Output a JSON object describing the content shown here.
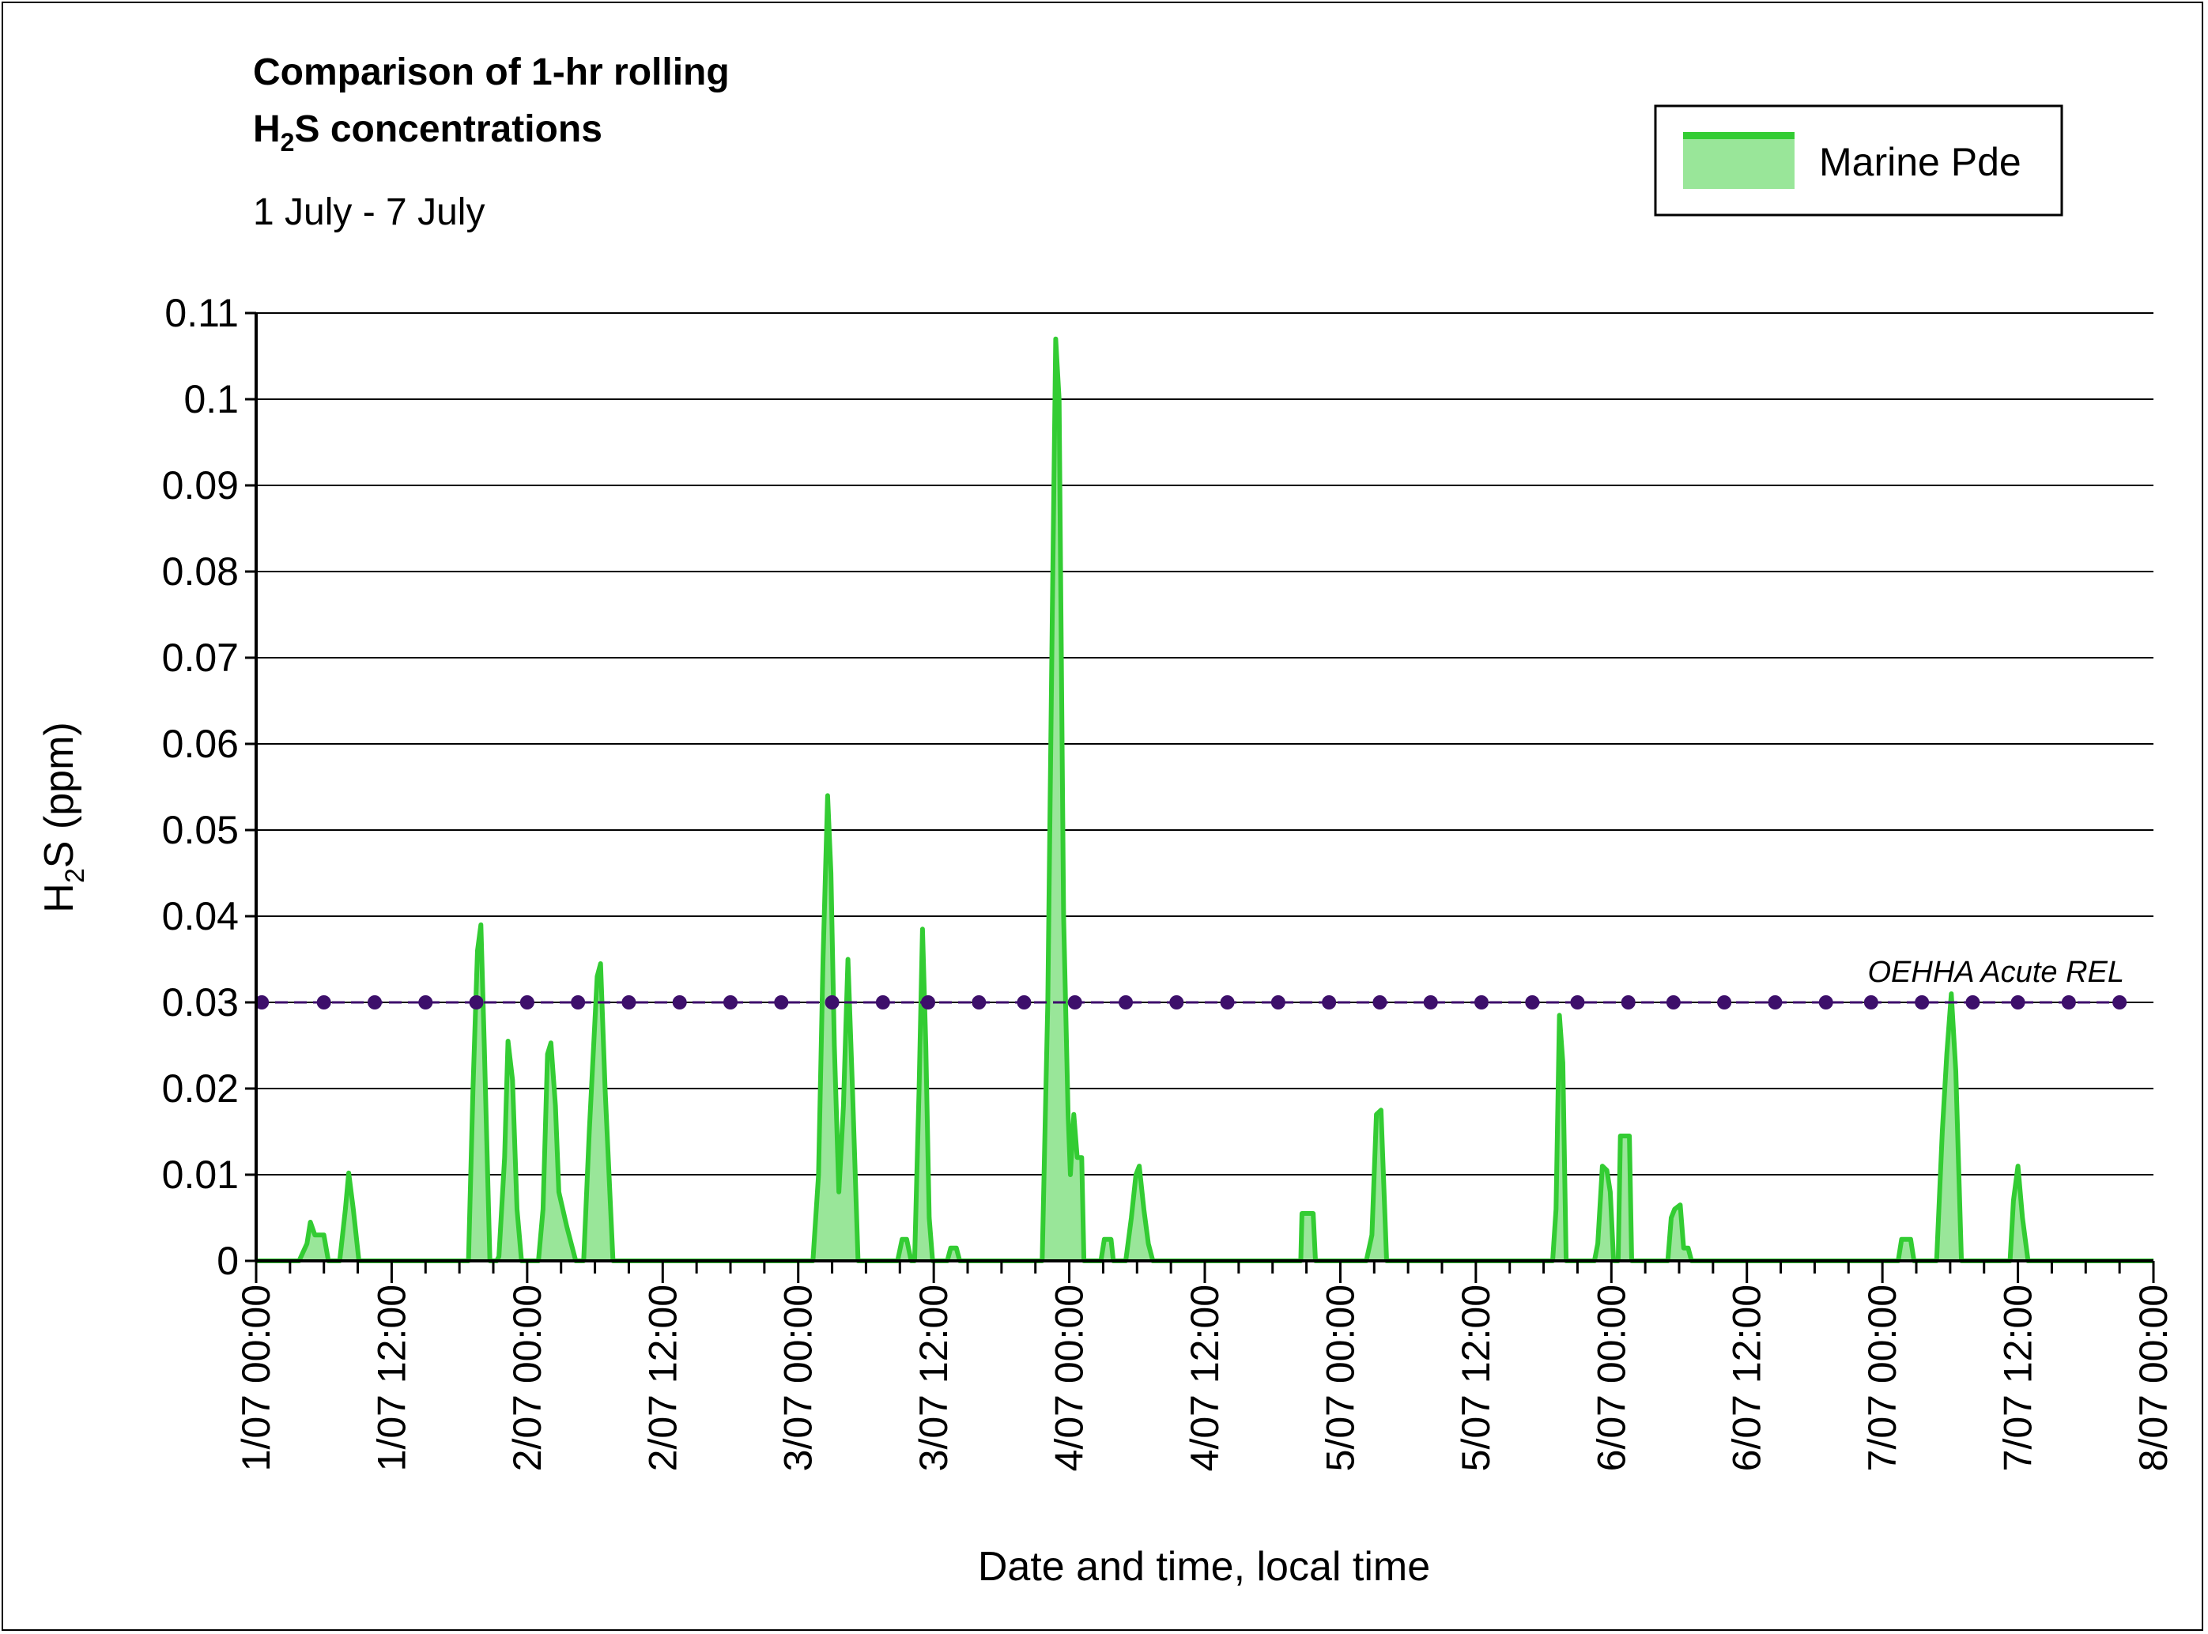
{
  "chart_data": {
    "type": "area",
    "title_line1": "Comparison of 1-hr rolling",
    "title_line2_prefix": "H",
    "title_line2_sub": "2",
    "title_line2_suffix": "S concentrations",
    "subtitle": "1 July - 7 July",
    "ylabel_prefix": "H",
    "ylabel_sub": "2",
    "ylabel_suffix": "S (ppm)",
    "xlabel": "Date and time, local time",
    "ylim": [
      0,
      0.11
    ],
    "xlim_hours": [
      0,
      168
    ],
    "y_ticks": [
      "0",
      "0.01",
      "0.02",
      "0.03",
      "0.04",
      "0.05",
      "0.06",
      "0.07",
      "0.08",
      "0.09",
      "0.1",
      "0.11"
    ],
    "x_ticks": [
      "1/07 00:00",
      "1/07 12:00",
      "2/07 00:00",
      "2/07 12:00",
      "3/07 00:00",
      "3/07 12:00",
      "4/07 00:00",
      "4/07 12:00",
      "5/07 00:00",
      "5/07 12:00",
      "6/07 00:00",
      "6/07 12:00",
      "7/07 00:00",
      "7/07 12:00",
      "8/07 00:00"
    ],
    "grid": true,
    "legend_position": "top-right",
    "series": [
      {
        "name": "Marine Pde",
        "line_color": "#33cc33",
        "fill_color": "#99e699",
        "points": [
          [
            0,
            0
          ],
          [
            3.8,
            0
          ],
          [
            4.5,
            0.002
          ],
          [
            4.8,
            0.0045
          ],
          [
            5.2,
            0.003
          ],
          [
            5.6,
            0.003
          ],
          [
            6,
            0.003
          ],
          [
            6.4,
            0
          ],
          [
            7.4,
            0
          ],
          [
            7.9,
            0.006
          ],
          [
            8.2,
            0.0102
          ],
          [
            8.6,
            0.006
          ],
          [
            9.1,
            0
          ],
          [
            18.8,
            0
          ],
          [
            19.2,
            0.02
          ],
          [
            19.6,
            0.036
          ],
          [
            19.9,
            0.039
          ],
          [
            20.2,
            0.025
          ],
          [
            20.7,
            0
          ],
          [
            21.3,
            0
          ],
          [
            21.5,
            0.0005
          ],
          [
            22,
            0.012
          ],
          [
            22.3,
            0.0255
          ],
          [
            22.7,
            0.021
          ],
          [
            23.1,
            0.006
          ],
          [
            23.5,
            0
          ],
          [
            25,
            0
          ],
          [
            25.4,
            0.006
          ],
          [
            25.8,
            0.024
          ],
          [
            26.1,
            0.0253
          ],
          [
            26.5,
            0.018
          ],
          [
            26.8,
            0.008
          ],
          [
            27.5,
            0.004
          ],
          [
            28.3,
            0
          ],
          [
            29,
            0
          ],
          [
            29.5,
            0.015
          ],
          [
            30.2,
            0.033
          ],
          [
            30.5,
            0.0345
          ],
          [
            30.9,
            0.02
          ],
          [
            31.6,
            0
          ],
          [
            49.3,
            0
          ],
          [
            49.8,
            0.01
          ],
          [
            50.2,
            0.035
          ],
          [
            50.6,
            0.054
          ],
          [
            50.9,
            0.045
          ],
          [
            51.2,
            0.025
          ],
          [
            51.6,
            0.008
          ],
          [
            52,
            0.018
          ],
          [
            52.4,
            0.035
          ],
          [
            52.8,
            0.02
          ],
          [
            53.3,
            0
          ],
          [
            56.8,
            0
          ],
          [
            57.2,
            0.0025
          ],
          [
            57.6,
            0.0025
          ],
          [
            58,
            0
          ],
          [
            58.3,
            0
          ],
          [
            58.7,
            0.02
          ],
          [
            59,
            0.0385
          ],
          [
            59.3,
            0.025
          ],
          [
            59.6,
            0.005
          ],
          [
            59.9,
            0
          ],
          [
            61.2,
            0
          ],
          [
            61.5,
            0.0015
          ],
          [
            62,
            0.0015
          ],
          [
            62.3,
            0
          ],
          [
            69.6,
            0
          ],
          [
            70.1,
            0.03
          ],
          [
            70.5,
            0.075
          ],
          [
            70.8,
            0.107
          ],
          [
            71.1,
            0.1
          ],
          [
            71.5,
            0.04
          ],
          [
            71.9,
            0.017
          ],
          [
            72.1,
            0.01
          ],
          [
            72.4,
            0.017
          ],
          [
            72.7,
            0.012
          ],
          [
            73.1,
            0.012
          ],
          [
            73.3,
            0
          ],
          [
            74.8,
            0
          ],
          [
            75.1,
            0.0025
          ],
          [
            75.7,
            0.0025
          ],
          [
            75.9,
            0
          ],
          [
            77,
            0
          ],
          [
            77.5,
            0.005
          ],
          [
            77.9,
            0.01
          ],
          [
            78.2,
            0.011
          ],
          [
            78.6,
            0.006
          ],
          [
            79,
            0.002
          ],
          [
            79.4,
            0
          ],
          [
            92.5,
            0
          ],
          [
            92.6,
            0.0055
          ],
          [
            93.6,
            0.0055
          ],
          [
            93.8,
            0
          ],
          [
            98.3,
            0
          ],
          [
            98.8,
            0.003
          ],
          [
            99.2,
            0.017
          ],
          [
            99.6,
            0.0175
          ],
          [
            100.1,
            0
          ],
          [
            114.8,
            0
          ],
          [
            115.1,
            0.006
          ],
          [
            115.4,
            0.0285
          ],
          [
            115.7,
            0.023
          ],
          [
            116,
            0
          ],
          [
            118.5,
            0
          ],
          [
            118.8,
            0.002
          ],
          [
            119.2,
            0.011
          ],
          [
            119.6,
            0.0105
          ],
          [
            119.9,
            0.008
          ],
          [
            120.2,
            0
          ],
          [
            120.6,
            0
          ],
          [
            120.8,
            0.0145
          ],
          [
            121.6,
            0.0145
          ],
          [
            121.8,
            0
          ],
          [
            125,
            0
          ],
          [
            125.3,
            0.005
          ],
          [
            125.6,
            0.006
          ],
          [
            126.1,
            0.0065
          ],
          [
            126.4,
            0.0015
          ],
          [
            126.8,
            0.0015
          ],
          [
            127.1,
            0
          ],
          [
            145.4,
            0
          ],
          [
            145.7,
            0.0025
          ],
          [
            146.5,
            0.0025
          ],
          [
            146.8,
            0
          ],
          [
            148.8,
            0
          ],
          [
            149.3,
            0.015
          ],
          [
            149.7,
            0.024
          ],
          [
            150.1,
            0.031
          ],
          [
            150.5,
            0.022
          ],
          [
            151,
            0
          ],
          [
            155.3,
            0
          ],
          [
            155.6,
            0.007
          ],
          [
            156,
            0.011
          ],
          [
            156.4,
            0.005
          ],
          [
            156.9,
            0
          ],
          [
            168,
            0
          ]
        ]
      }
    ],
    "reference_line": {
      "label": "OEHHA Acute REL",
      "value": 0.03,
      "color": "#3d0f6b",
      "marker_hours": [
        0.5,
        6,
        10.5,
        15,
        19.5,
        24,
        28.5,
        33,
        37.5,
        42,
        46.5,
        51,
        55.5,
        59.5,
        64,
        68,
        72.5,
        77,
        81.5,
        86,
        90.5,
        95,
        99.5,
        104,
        108.5,
        113,
        117,
        121.5,
        125.5,
        130,
        134.5,
        139,
        143,
        147.5,
        152,
        156,
        160.5,
        165
      ]
    }
  }
}
